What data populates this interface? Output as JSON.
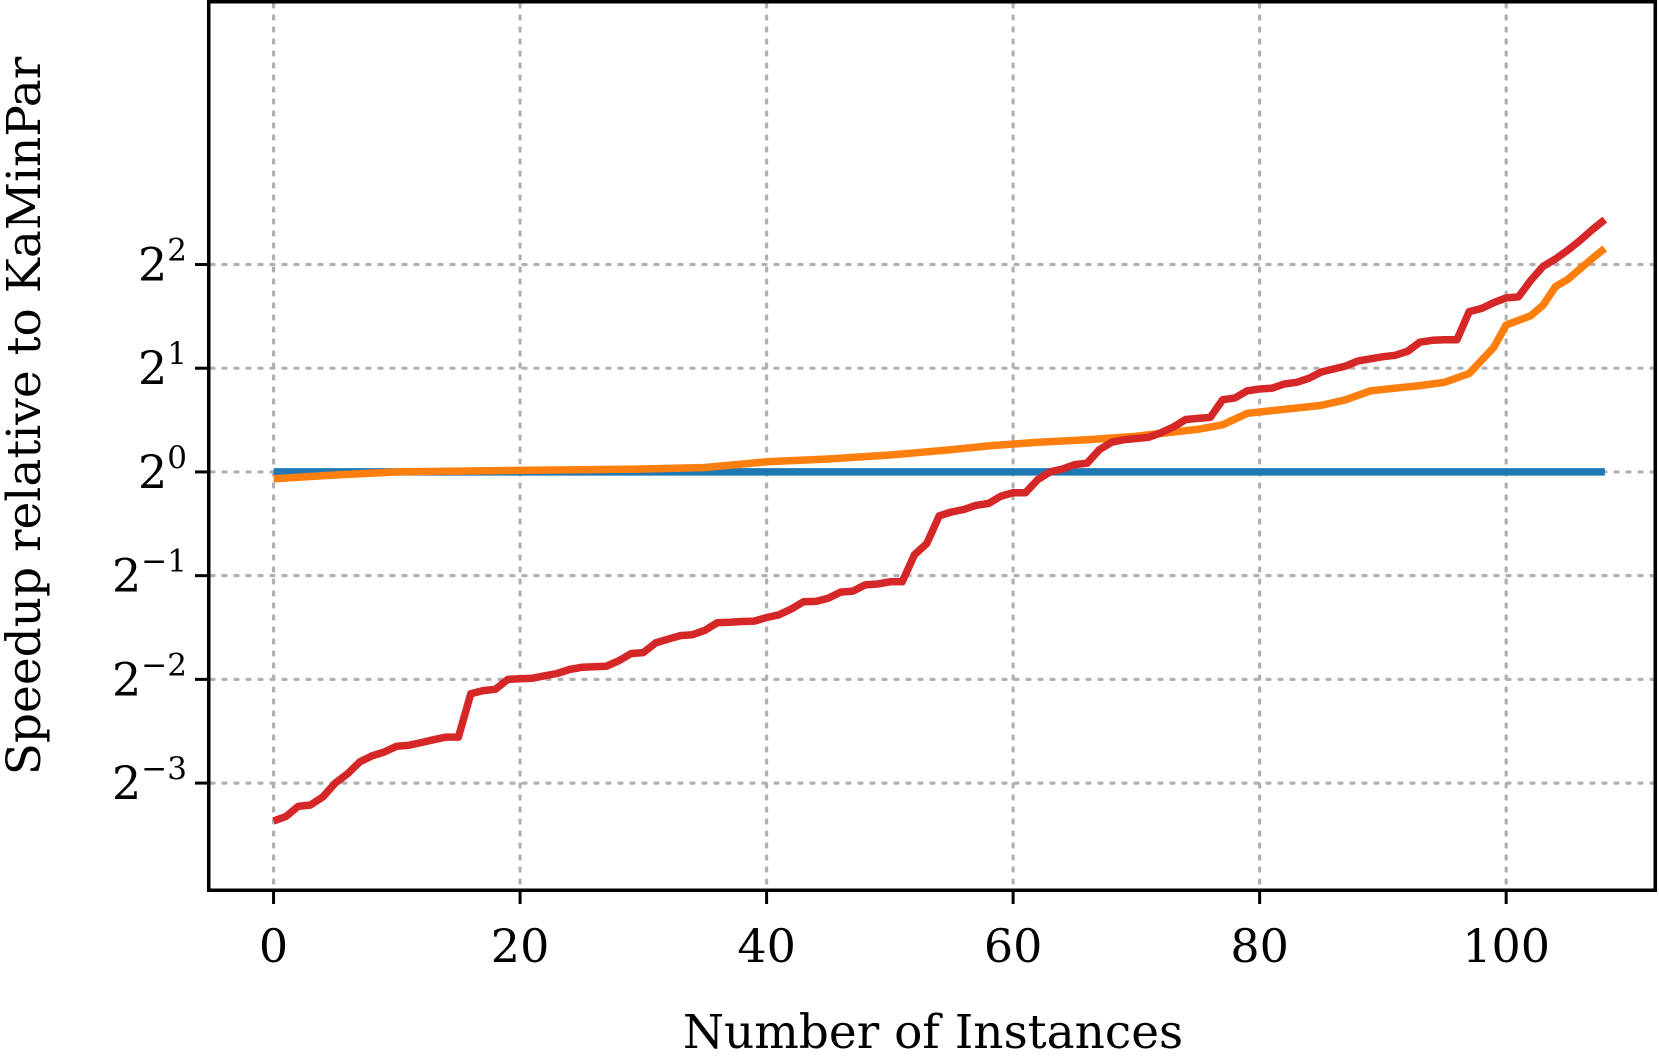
{
  "chart_data": {
    "type": "line",
    "xlabel": "Number of Instances",
    "ylabel": "Speedup relative to KaMinPar",
    "xlim": [
      -5.4,
      112.4
    ],
    "ylim": [
      -4.05,
      4.55
    ],
    "y_scale": "log2",
    "x_ticks": [
      0,
      20,
      40,
      60,
      80,
      100
    ],
    "x_tick_labels": [
      "0",
      "20",
      "40",
      "60",
      "80",
      "100"
    ],
    "y_ticks": [
      {
        "value": 0.125,
        "base": "2",
        "exp": "−3"
      },
      {
        "value": 0.25,
        "base": "2",
        "exp": "−2"
      },
      {
        "value": 0.5,
        "base": "2",
        "exp": "−1"
      },
      {
        "value": 1,
        "base": "2",
        "exp": "0"
      },
      {
        "value": 2,
        "base": "2",
        "exp": "1"
      },
      {
        "value": 4,
        "base": "2",
        "exp": "2"
      }
    ],
    "grid": true,
    "series": [
      {
        "color": "#1f77b4",
        "points": [
          [
            0,
            1.0
          ],
          [
            108,
            1.0
          ]
        ]
      },
      {
        "color": "#ff7f0e",
        "points": [
          [
            0,
            0.955
          ],
          [
            5,
            0.98
          ],
          [
            10,
            1.0
          ],
          [
            20,
            1.01
          ],
          [
            30,
            1.02
          ],
          [
            35,
            1.03
          ],
          [
            40,
            1.07
          ],
          [
            45,
            1.09
          ],
          [
            50,
            1.12
          ],
          [
            55,
            1.16
          ],
          [
            58,
            1.19
          ],
          [
            62,
            1.22
          ],
          [
            66,
            1.24
          ],
          [
            70,
            1.27
          ],
          [
            75,
            1.33
          ],
          [
            77,
            1.37
          ],
          [
            79,
            1.48
          ],
          [
            85,
            1.56
          ],
          [
            87,
            1.62
          ],
          [
            89,
            1.72
          ],
          [
            93,
            1.78
          ],
          [
            95,
            1.82
          ],
          [
            97,
            1.93
          ],
          [
            99,
            2.3
          ],
          [
            100,
            2.67
          ],
          [
            102,
            2.84
          ],
          [
            103,
            3.05
          ],
          [
            104,
            3.45
          ],
          [
            105,
            3.62
          ],
          [
            107,
            4.17
          ],
          [
            108,
            4.45
          ]
        ]
      },
      {
        "color": "#d62728",
        "points": [
          [
            0,
            0.097
          ],
          [
            1,
            0.1
          ],
          [
            2,
            0.107
          ],
          [
            3,
            0.108
          ],
          [
            4,
            0.114
          ],
          [
            5,
            0.125
          ],
          [
            6,
            0.133
          ],
          [
            7,
            0.144
          ],
          [
            8,
            0.15
          ],
          [
            9,
            0.154
          ],
          [
            10,
            0.16
          ],
          [
            11,
            0.161
          ],
          [
            12,
            0.164
          ],
          [
            13,
            0.167
          ],
          [
            14,
            0.17
          ],
          [
            15,
            0.17
          ],
          [
            16,
            0.227
          ],
          [
            17,
            0.232
          ],
          [
            18,
            0.234
          ],
          [
            19,
            0.25
          ],
          [
            20,
            0.251
          ],
          [
            21,
            0.252
          ],
          [
            22,
            0.256
          ],
          [
            23,
            0.26
          ],
          [
            24,
            0.267
          ],
          [
            25,
            0.271
          ],
          [
            26,
            0.272
          ],
          [
            27,
            0.273
          ],
          [
            28,
            0.283
          ],
          [
            29,
            0.297
          ],
          [
            30,
            0.299
          ],
          [
            31,
            0.319
          ],
          [
            32,
            0.327
          ],
          [
            33,
            0.335
          ],
          [
            34,
            0.337
          ],
          [
            35,
            0.347
          ],
          [
            36,
            0.365
          ],
          [
            37,
            0.366
          ],
          [
            38,
            0.368
          ],
          [
            39,
            0.369
          ],
          [
            40,
            0.378
          ],
          [
            41,
            0.385
          ],
          [
            42,
            0.4
          ],
          [
            43,
            0.42
          ],
          [
            44,
            0.421
          ],
          [
            45,
            0.43
          ],
          [
            46,
            0.448
          ],
          [
            47,
            0.451
          ],
          [
            48,
            0.47
          ],
          [
            49,
            0.473
          ],
          [
            50,
            0.48
          ],
          [
            51,
            0.48
          ],
          [
            52,
            0.575
          ],
          [
            53,
            0.62
          ],
          [
            54,
            0.746
          ],
          [
            55,
            0.765
          ],
          [
            56,
            0.778
          ],
          [
            57,
            0.8
          ],
          [
            58,
            0.81
          ],
          [
            59,
            0.85
          ],
          [
            60,
            0.87
          ],
          [
            61,
            0.87
          ],
          [
            62,
            0.95
          ],
          [
            63,
            1.0
          ],
          [
            64,
            1.02
          ],
          [
            65,
            1.05
          ],
          [
            66,
            1.06
          ],
          [
            67,
            1.16
          ],
          [
            68,
            1.22
          ],
          [
            69,
            1.24
          ],
          [
            70,
            1.25
          ],
          [
            71,
            1.26
          ],
          [
            72,
            1.3
          ],
          [
            73,
            1.35
          ],
          [
            74,
            1.42
          ],
          [
            75,
            1.43
          ],
          [
            76,
            1.44
          ],
          [
            77,
            1.62
          ],
          [
            78,
            1.64
          ],
          [
            79,
            1.72
          ],
          [
            80,
            1.74
          ],
          [
            81,
            1.75
          ],
          [
            82,
            1.8
          ],
          [
            83,
            1.82
          ],
          [
            84,
            1.87
          ],
          [
            85,
            1.95
          ],
          [
            86,
            1.99
          ],
          [
            87,
            2.03
          ],
          [
            88,
            2.1
          ],
          [
            89,
            2.13
          ],
          [
            90,
            2.16
          ],
          [
            91,
            2.18
          ],
          [
            92,
            2.24
          ],
          [
            93,
            2.38
          ],
          [
            94,
            2.41
          ],
          [
            95,
            2.42
          ],
          [
            96,
            2.42
          ],
          [
            97,
            2.92
          ],
          [
            98,
            2.98
          ],
          [
            99,
            3.1
          ],
          [
            100,
            3.2
          ],
          [
            101,
            3.22
          ],
          [
            102,
            3.6
          ],
          [
            103,
            3.95
          ],
          [
            104,
            4.15
          ],
          [
            105,
            4.4
          ],
          [
            106,
            4.7
          ],
          [
            107,
            5.05
          ],
          [
            108,
            5.4
          ]
        ]
      }
    ]
  }
}
